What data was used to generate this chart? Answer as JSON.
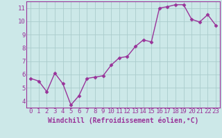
{
  "x": [
    0,
    1,
    2,
    3,
    4,
    5,
    6,
    7,
    8,
    9,
    10,
    11,
    12,
    13,
    14,
    15,
    16,
    17,
    18,
    19,
    20,
    21,
    22,
    23
  ],
  "y": [
    5.7,
    5.5,
    4.7,
    6.1,
    5.3,
    3.7,
    4.4,
    5.7,
    5.8,
    5.9,
    6.7,
    7.25,
    7.35,
    8.1,
    8.6,
    8.45,
    11.0,
    11.1,
    11.25,
    11.25,
    10.15,
    9.95,
    10.5,
    9.7
  ],
  "line_color": "#993399",
  "marker": "D",
  "markersize": 2.5,
  "linewidth": 1.0,
  "background_color": "#cce8e8",
  "grid_color": "#aacccc",
  "xlabel": "Windchill (Refroidissement éolien,°C)",
  "xlabel_fontsize": 7,
  "tick_fontsize": 6.5,
  "xlim": [
    -0.5,
    23.5
  ],
  "ylim": [
    3.5,
    11.5
  ],
  "yticks": [
    4,
    5,
    6,
    7,
    8,
    9,
    10,
    11
  ],
  "xticks": [
    0,
    1,
    2,
    3,
    4,
    5,
    6,
    7,
    8,
    9,
    10,
    11,
    12,
    13,
    14,
    15,
    16,
    17,
    18,
    19,
    20,
    21,
    22,
    23
  ]
}
